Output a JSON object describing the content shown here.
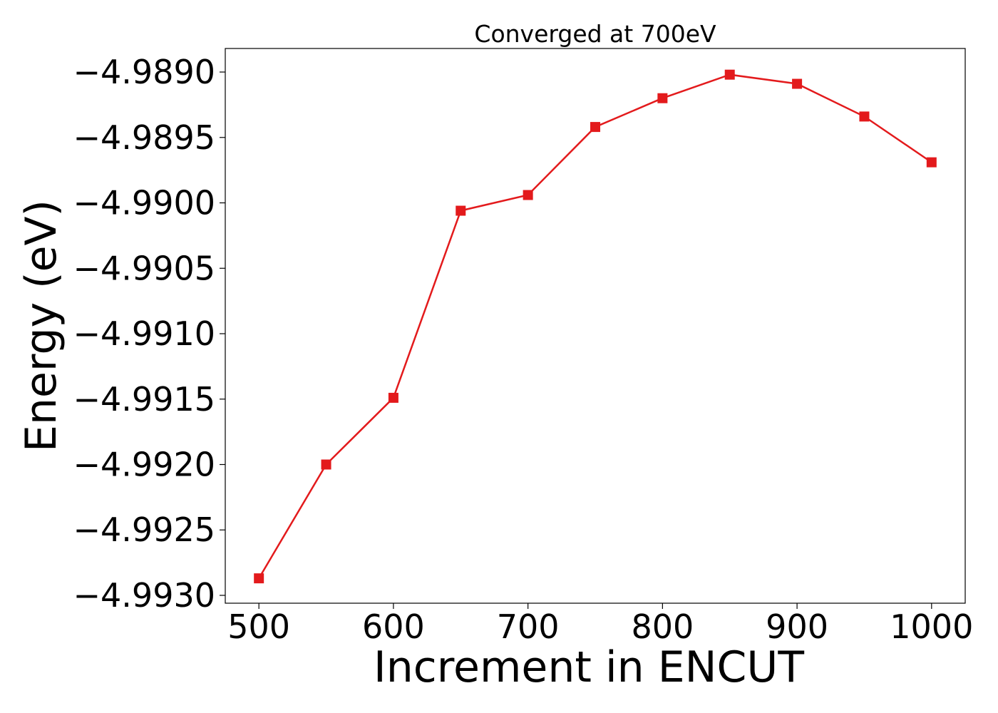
{
  "chart_data": {
    "type": "line",
    "title": "Converged at 700eV",
    "xlabel": "Increment in ENCUT",
    "ylabel": "Energy (eV)",
    "xlim": [
      475,
      1025
    ],
    "ylim": [
      -4.99306,
      -4.98882
    ],
    "x_ticks": [
      500,
      600,
      700,
      800,
      900,
      1000
    ],
    "x_tick_labels": [
      "500",
      "600",
      "700",
      "800",
      "900",
      "1000"
    ],
    "y_ticks": [
      -4.993,
      -4.9925,
      -4.992,
      -4.9915,
      -4.991,
      -4.9905,
      -4.99,
      -4.9895,
      -4.989
    ],
    "y_tick_labels": [
      "−4.9930",
      "−4.9925",
      "−4.9920",
      "−4.9915",
      "−4.9910",
      "−4.9905",
      "−4.9900",
      "−4.9895",
      "−4.9890"
    ],
    "grid": false,
    "legend": "none",
    "series": [
      {
        "color": "#e31a1c",
        "marker": "square",
        "x": [
          500,
          550,
          600,
          650,
          700,
          750,
          800,
          850,
          900,
          950,
          1000
        ],
        "y": [
          -4.99287,
          -4.992,
          -4.99149,
          -4.99006,
          -4.98994,
          -4.98942,
          -4.9892,
          -4.98902,
          -4.98909,
          -4.98934,
          -4.98969
        ]
      }
    ]
  }
}
